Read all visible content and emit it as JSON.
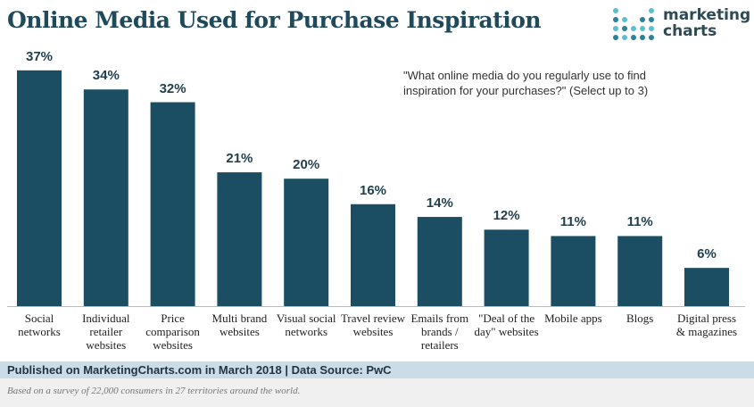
{
  "chart_data": {
    "type": "bar",
    "title": "Online Media Used for Purchase Inspiration",
    "logo": "marketing charts",
    "subtitle": "\"What online media do you regularly use to find inspiration for your purchases?\" (Select up to 3)",
    "categories": [
      "Social networks",
      "Individual retailer websites",
      "Price comparison websites",
      "Multi brand websites",
      "Visual social networks",
      "Travel review websites",
      "Emails from brands / retailers",
      "\"Deal of the day\" websites",
      "Mobile apps",
      "Blogs",
      "Digital press & magazines"
    ],
    "values": [
      37,
      34,
      32,
      21,
      20,
      16,
      14,
      12,
      11,
      11,
      6
    ],
    "value_labels": [
      "37%",
      "34%",
      "32%",
      "21%",
      "20%",
      "16%",
      "14%",
      "12%",
      "11%",
      "11%",
      "6%"
    ],
    "color": "#1c4e63",
    "source": "Published on MarketingCharts.com in March 2018 | Data Source: PwC",
    "note": "Based on a survey of 22,000 consumers in 27 territories around the world."
  }
}
